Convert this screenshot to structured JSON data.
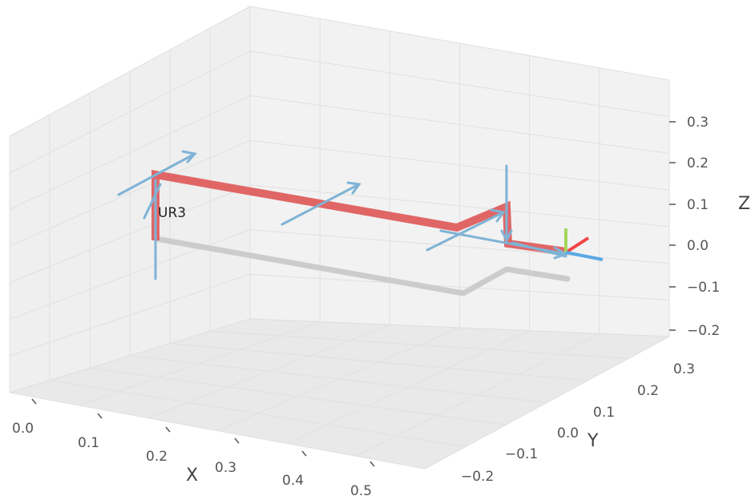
{
  "chart_data": {
    "type": "3d-line",
    "title": "",
    "robot_label": "UR3",
    "axes": {
      "x": {
        "label": "X",
        "ticks": [
          "0.0",
          "0.1",
          "0.2",
          "0.3",
          "0.4",
          "0.5"
        ]
      },
      "y": {
        "label": "Y",
        "ticks": [
          "-0.2",
          "-0.1",
          "0.0",
          "0.1",
          "0.2",
          "0.3"
        ]
      },
      "z": {
        "label": "Z",
        "ticks": [
          "-0.2",
          "-0.1",
          "0.0",
          "0.1",
          "0.2",
          "0.3"
        ]
      }
    },
    "grid": true,
    "pane_color": "#f2f2f2",
    "grid_color": "#e0e0e0",
    "series": [
      {
        "name": "",
        "role": "robot links",
        "color": "#e06666"
      },
      {
        "name": "",
        "role": "shadow",
        "color": "#cccccc"
      },
      {
        "name": "",
        "role": "joint axes",
        "color": "#7fb3d5"
      }
    ],
    "end_effector_frame": {
      "x_color": "#ef4444",
      "y_color": "#a3d65c",
      "z_color": "#5aa9e6"
    }
  }
}
